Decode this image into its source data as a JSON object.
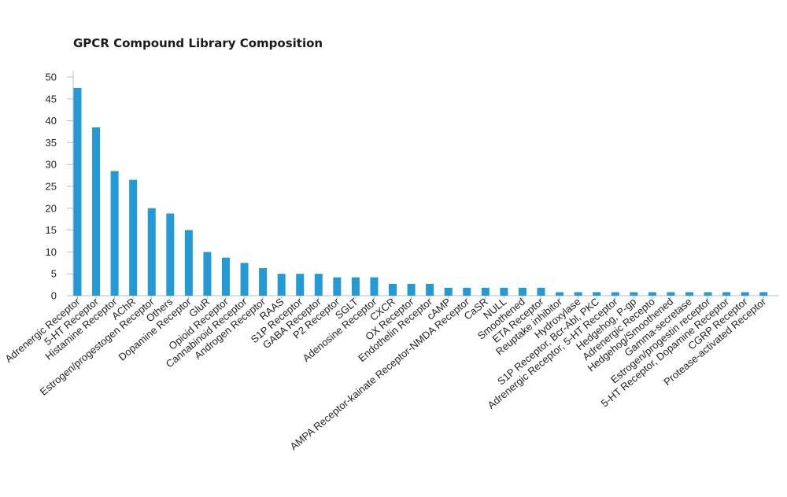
{
  "chart_data": {
    "type": "bar",
    "title": "GPCR Compound Library Composition",
    "xlabel": "",
    "ylabel": "",
    "ylim": [
      0,
      50
    ],
    "yticks": [
      0,
      5,
      10,
      15,
      20,
      25,
      30,
      35,
      40,
      45,
      50
    ],
    "grid": false,
    "legend": "none",
    "bar_color": "#2399d6",
    "categories": [
      "Adrenergic Receptor",
      "5-HT Receptor",
      "Histamine Receptor",
      "AChR",
      "Estrogen/progestogen Receptor",
      "Others",
      "Dopamine Receptor",
      "GluR",
      "Opioid Receptor",
      "Cannabinoid Receptor",
      "Androgen Receptor",
      "RAAS",
      "S1P Receptor",
      "GABA Receptor",
      "P2 Receptor",
      "SGLT",
      "Adenosine Receptor",
      "CXCR",
      "OX Receptor",
      "Endothelin Receptor",
      "cAMP",
      "AMPA Receptor-kainate Receptor-NMDA Receptor",
      "CaSR",
      "NULL",
      "Smoothened",
      "ETA Receptor",
      "Reuptake inhibitor",
      "Hydroxylase",
      "S1P Receptor, Bcr-Abl, PKC",
      "Adrenergic Receptor, 5-HT Receptor",
      "Hedgehog, P-gp",
      "Adrenergic Recepto",
      "Hedgehog/Smoothened",
      "Gamma-secretase",
      "Estrogen/progestin receptor",
      "5-HT Receptor, Dopamine Receptor",
      "CGRP Receptor",
      "Protease-activated Receptor"
    ],
    "values": [
      47.5,
      38.5,
      28.5,
      26.5,
      20,
      18.8,
      15,
      10,
      8.7,
      7.5,
      6.3,
      5,
      5,
      5,
      4.2,
      4.2,
      4.2,
      2.7,
      2.7,
      2.7,
      1.8,
      1.8,
      1.8,
      1.8,
      1.8,
      1.8,
      0.8,
      0.8,
      0.8,
      0.8,
      0.8,
      0.8,
      0.8,
      0.8,
      0.8,
      0.8,
      0.8,
      0.8
    ]
  }
}
